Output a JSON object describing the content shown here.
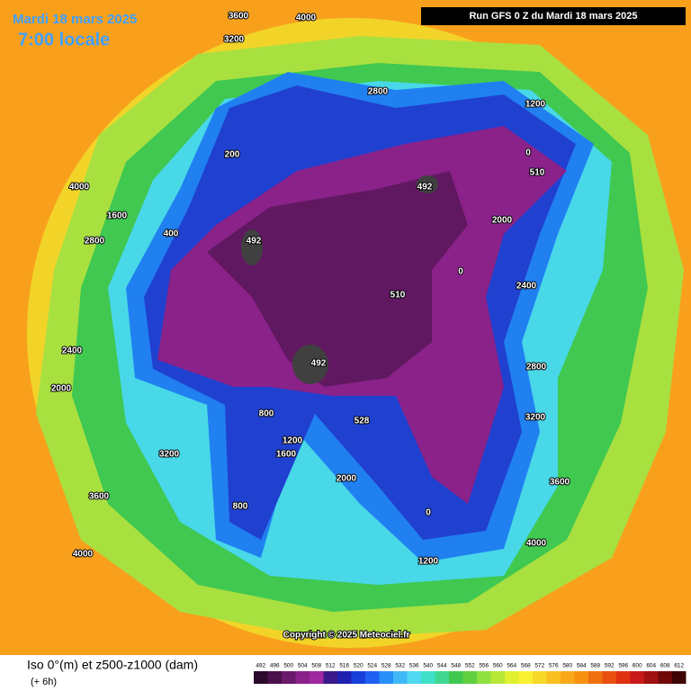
{
  "header": {
    "date": "Mardi 18 mars 2025",
    "time": "7:00 locale",
    "run": "Run GFS 0 Z du Mardi 18 mars 2025"
  },
  "map": {
    "copyright": "Copyright © 2025 Meteociel.fr",
    "contour_labels": [
      "3600",
      "4000",
      "3200",
      "2800",
      "1200",
      "200",
      "400",
      "1600",
      "2800",
      "4000",
      "2400",
      "2000",
      "3200",
      "3600",
      "4000",
      "800",
      "1200",
      "2000",
      "2400",
      "492",
      "492",
      "492",
      "510",
      "510",
      "528",
      "0",
      "0",
      "1200",
      "2000",
      "2800",
      "3200",
      "3600",
      "4000",
      "1600",
      "800",
      "0"
    ]
  },
  "footer": {
    "title": "Iso 0°(m) et z500-z1000 (dam)",
    "step": "(+ 6h)"
  },
  "scale": {
    "values": [
      492,
      496,
      500,
      504,
      508,
      512,
      516,
      520,
      524,
      528,
      532,
      536,
      540,
      544,
      548,
      552,
      556,
      560,
      564,
      568,
      572,
      576,
      580,
      584,
      588,
      592,
      596,
      600,
      604,
      608,
      612
    ],
    "colors": [
      "#2a0a2a",
      "#4a104a",
      "#6a1a6a",
      "#8a208a",
      "#a028a0",
      "#3a1a8a",
      "#2020b0",
      "#1840d8",
      "#2060f0",
      "#2890f8",
      "#40b8f8",
      "#50d8f0",
      "#40e0c8",
      "#40d890",
      "#40c850",
      "#60d040",
      "#90e040",
      "#b8e838",
      "#e0f030",
      "#f8f030",
      "#f8d828",
      "#f8c020",
      "#f8a818",
      "#f89010",
      "#f07010",
      "#e85010",
      "#e03010",
      "#c81818",
      "#a01010",
      "#700808",
      "#400404"
    ]
  }
}
